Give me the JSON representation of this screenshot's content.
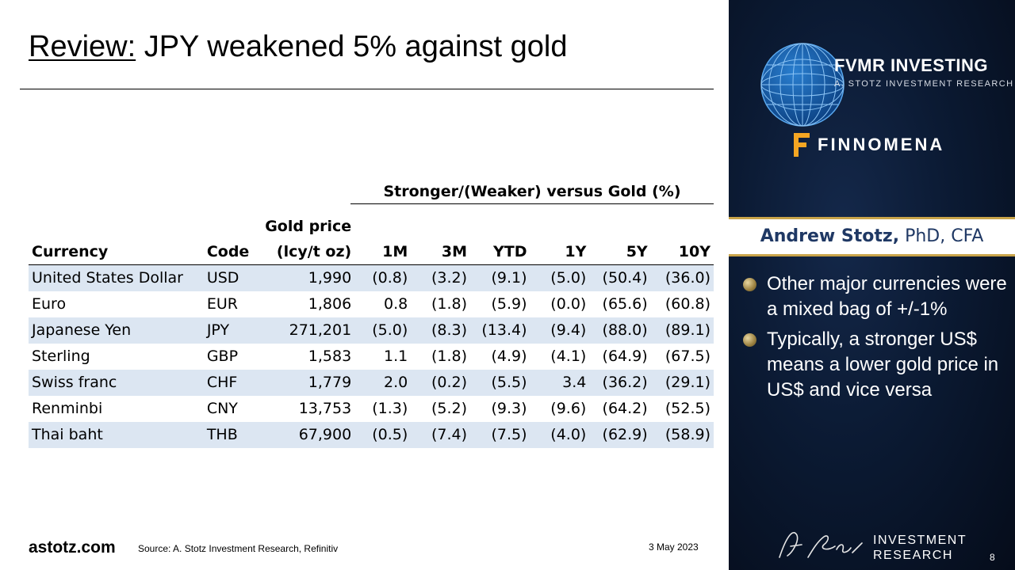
{
  "slide": {
    "title_prefix": "Review:",
    "title_rest": " JPY weakened 5% against gold"
  },
  "table": {
    "group_header": "Stronger/(Weaker) versus Gold (%)",
    "columns": [
      {
        "line1": "",
        "line2": "Currency"
      },
      {
        "line1": "",
        "line2": "Code"
      },
      {
        "line1": "Gold price",
        "line2": "(lcy/t oz)"
      },
      {
        "line1": "",
        "line2": "1M"
      },
      {
        "line1": "",
        "line2": "3M"
      },
      {
        "line1": "",
        "line2": "YTD"
      },
      {
        "line1": "",
        "line2": "1Y"
      },
      {
        "line1": "",
        "line2": "5Y"
      },
      {
        "line1": "",
        "line2": "10Y"
      }
    ],
    "rows": [
      [
        "United States Dollar",
        "USD",
        "1,990",
        "(0.8)",
        "(3.2)",
        "(9.1)",
        "(5.0)",
        "(50.4)",
        "(36.0)"
      ],
      [
        "Euro",
        "EUR",
        "1,806",
        "0.8",
        "(1.8)",
        "(5.9)",
        "(0.0)",
        "(65.6)",
        "(60.8)"
      ],
      [
        "Japanese Yen",
        "JPY",
        "271,201",
        "(5.0)",
        "(8.3)",
        "(13.4)",
        "(9.4)",
        "(88.0)",
        "(89.1)"
      ],
      [
        "Sterling",
        "GBP",
        "1,583",
        "1.1",
        "(1.8)",
        "(4.9)",
        "(4.1)",
        "(64.9)",
        "(67.5)"
      ],
      [
        "Swiss franc",
        "CHF",
        "1,779",
        "2.0",
        "(0.2)",
        "(5.5)",
        "3.4",
        "(36.2)",
        "(29.1)"
      ],
      [
        "Renminbi",
        "CNY",
        "13,753",
        "(1.3)",
        "(5.2)",
        "(9.3)",
        "(9.6)",
        "(64.2)",
        "(52.5)"
      ],
      [
        "Thai baht",
        "THB",
        "67,900",
        "(0.5)",
        "(7.4)",
        "(7.5)",
        "(4.0)",
        "(62.9)",
        "(58.9)"
      ]
    ]
  },
  "footer": {
    "site": "astotz.com",
    "source": "Source: A. Stotz Investment Research, Refinitiv",
    "date": "3 May 2023"
  },
  "panel": {
    "brand_main": "FVMR INVESTING",
    "brand_sub": "A. STOTZ INVESTMENT RESEARCH",
    "partner": "FINNOMENA",
    "presenter_name": "Andrew Stotz,",
    "presenter_creds": " PhD, CFA",
    "bullets": [
      "Other major currencies were a mixed bag of +/-1%",
      "Typically, a stronger US$ means a lower gold price in US$ and vice versa"
    ],
    "ir_line1": "INVESTMENT",
    "ir_line2": "RESEARCH",
    "page_number": "8",
    "signature": "A. Stotz"
  },
  "colors": {
    "row_shade": "#dce6f2",
    "panel_bg": "#0b1a33",
    "accent_gold": "#c9a44a",
    "finnomena_orange": "#f5a623",
    "presenter_text": "#1f3864"
  },
  "icons": [
    "globe-logo-icon",
    "finnomena-logo-icon",
    "bullet-dot-icon",
    "signature-icon"
  ]
}
